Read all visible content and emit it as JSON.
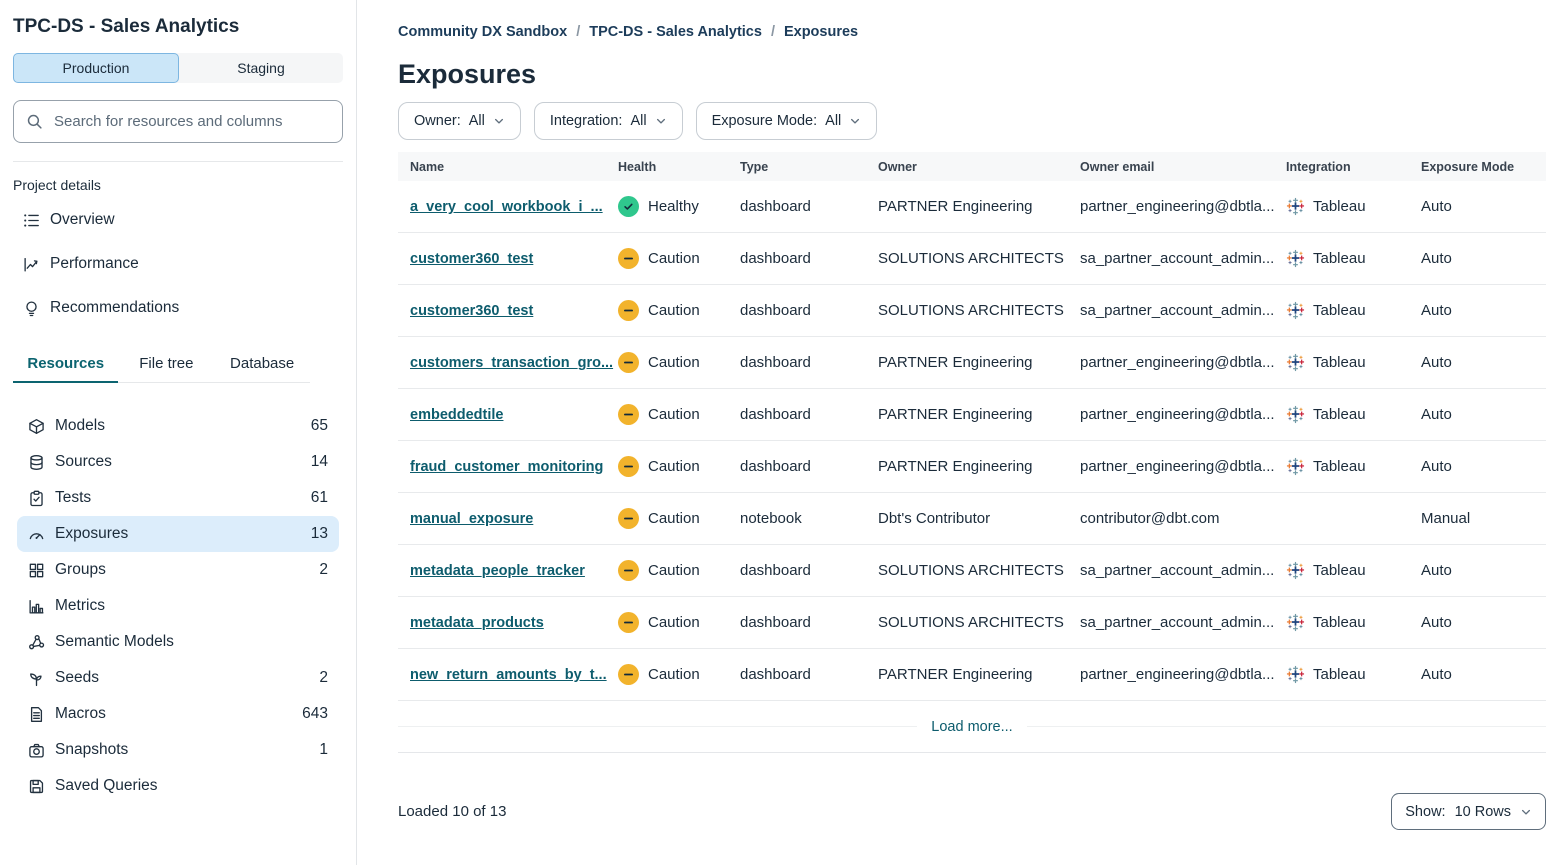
{
  "colors": {
    "accent_teal": "#0c6470",
    "link_teal": "#0d5c6d",
    "selected_blue": "#dcedfb",
    "production_blue": "#cbe6f8",
    "healthy_green": "#2fc78d",
    "caution_yellow": "#f2b32c",
    "breadcrumb_navy": "#1c3c5a"
  },
  "sidebar": {
    "title": "TPC-DS - Sales Analytics",
    "env_tabs": [
      {
        "label": "Production",
        "active": true
      },
      {
        "label": "Staging",
        "active": false
      }
    ],
    "search_placeholder": "Search for resources and columns",
    "project_details_label": "Project details",
    "project_links": [
      {
        "label": "Overview",
        "icon": "list"
      },
      {
        "label": "Performance",
        "icon": "chart-line"
      },
      {
        "label": "Recommendations",
        "icon": "lightbulb"
      }
    ],
    "tabs": [
      {
        "label": "Resources",
        "active": true
      },
      {
        "label": "File tree",
        "active": false
      },
      {
        "label": "Database",
        "active": false
      }
    ],
    "resources": [
      {
        "label": "Models",
        "count": "65",
        "icon": "cube",
        "selected": false
      },
      {
        "label": "Sources",
        "count": "14",
        "icon": "database",
        "selected": false
      },
      {
        "label": "Tests",
        "count": "61",
        "icon": "clipboard-check",
        "selected": false
      },
      {
        "label": "Exposures",
        "count": "13",
        "icon": "gauge",
        "selected": true
      },
      {
        "label": "Groups",
        "count": "2",
        "icon": "grid",
        "selected": false
      },
      {
        "label": "Metrics",
        "count": "",
        "icon": "bar-chart",
        "selected": false
      },
      {
        "label": "Semantic Models",
        "count": "",
        "icon": "network",
        "selected": false
      },
      {
        "label": "Seeds",
        "count": "2",
        "icon": "seedling",
        "selected": false
      },
      {
        "label": "Macros",
        "count": "643",
        "icon": "file-text",
        "selected": false
      },
      {
        "label": "Snapshots",
        "count": "1",
        "icon": "camera",
        "selected": false
      },
      {
        "label": "Saved Queries",
        "count": "",
        "icon": "save",
        "selected": false
      }
    ]
  },
  "main": {
    "breadcrumb": [
      {
        "label": "Community DX Sandbox",
        "link": true
      },
      {
        "label": "TPC-DS - Sales Analytics",
        "link": true
      },
      {
        "label": "Exposures",
        "link": false
      }
    ],
    "breadcrumb_separator": "/",
    "page_title": "Exposures",
    "filters": [
      {
        "label": "Owner:",
        "value": "All"
      },
      {
        "label": "Integration:",
        "value": "All"
      },
      {
        "label": "Exposure Mode:",
        "value": "All"
      }
    ],
    "table": {
      "columns": [
        "Name",
        "Health",
        "Type",
        "Owner",
        "Owner email",
        "Integration",
        "Exposure Mode"
      ],
      "rows": [
        {
          "name": "a_very_cool_workbook_i_...",
          "health": "Healthy",
          "health_status": "healthy",
          "type": "dashboard",
          "owner": "PARTNER Engineering",
          "owner_email": "partner_engineering@dbtla...",
          "integration": "Tableau",
          "exposure_mode": "Auto"
        },
        {
          "name": "customer360_test",
          "health": "Caution",
          "health_status": "caution",
          "type": "dashboard",
          "owner": "SOLUTIONS ARCHITECTS",
          "owner_email": "sa_partner_account_admin...",
          "integration": "Tableau",
          "exposure_mode": "Auto"
        },
        {
          "name": "customer360_test",
          "health": "Caution",
          "health_status": "caution",
          "type": "dashboard",
          "owner": "SOLUTIONS ARCHITECTS",
          "owner_email": "sa_partner_account_admin...",
          "integration": "Tableau",
          "exposure_mode": "Auto"
        },
        {
          "name": "customers_transaction_gro...",
          "health": "Caution",
          "health_status": "caution",
          "type": "dashboard",
          "owner": "PARTNER Engineering",
          "owner_email": "partner_engineering@dbtla...",
          "integration": "Tableau",
          "exposure_mode": "Auto"
        },
        {
          "name": "embeddedtile",
          "health": "Caution",
          "health_status": "caution",
          "type": "dashboard",
          "owner": "PARTNER Engineering",
          "owner_email": "partner_engineering@dbtla...",
          "integration": "Tableau",
          "exposure_mode": "Auto"
        },
        {
          "name": "fraud_customer_monitoring",
          "health": "Caution",
          "health_status": "caution",
          "type": "dashboard",
          "owner": "PARTNER Engineering",
          "owner_email": "partner_engineering@dbtla...",
          "integration": "Tableau",
          "exposure_mode": "Auto"
        },
        {
          "name": "manual_exposure",
          "health": "Caution",
          "health_status": "caution",
          "type": "notebook",
          "owner": "Dbt's Contributor",
          "owner_email": "contributor@dbt.com",
          "integration": "",
          "exposure_mode": "Manual"
        },
        {
          "name": "metadata_people_tracker",
          "health": "Caution",
          "health_status": "caution",
          "type": "dashboard",
          "owner": "SOLUTIONS ARCHITECTS",
          "owner_email": "sa_partner_account_admin...",
          "integration": "Tableau",
          "exposure_mode": "Auto"
        },
        {
          "name": "metadata_products",
          "health": "Caution",
          "health_status": "caution",
          "type": "dashboard",
          "owner": "SOLUTIONS ARCHITECTS",
          "owner_email": "sa_partner_account_admin...",
          "integration": "Tableau",
          "exposure_mode": "Auto"
        },
        {
          "name": "new_return_amounts_by_t...",
          "health": "Caution",
          "health_status": "caution",
          "type": "dashboard",
          "owner": "PARTNER Engineering",
          "owner_email": "partner_engineering@dbtla...",
          "integration": "Tableau",
          "exposure_mode": "Auto"
        }
      ]
    },
    "load_more_label": "Load more...",
    "footer": {
      "loaded_text": "Loaded 10 of 13",
      "show_label": "Show:",
      "show_value": "10 Rows"
    }
  }
}
